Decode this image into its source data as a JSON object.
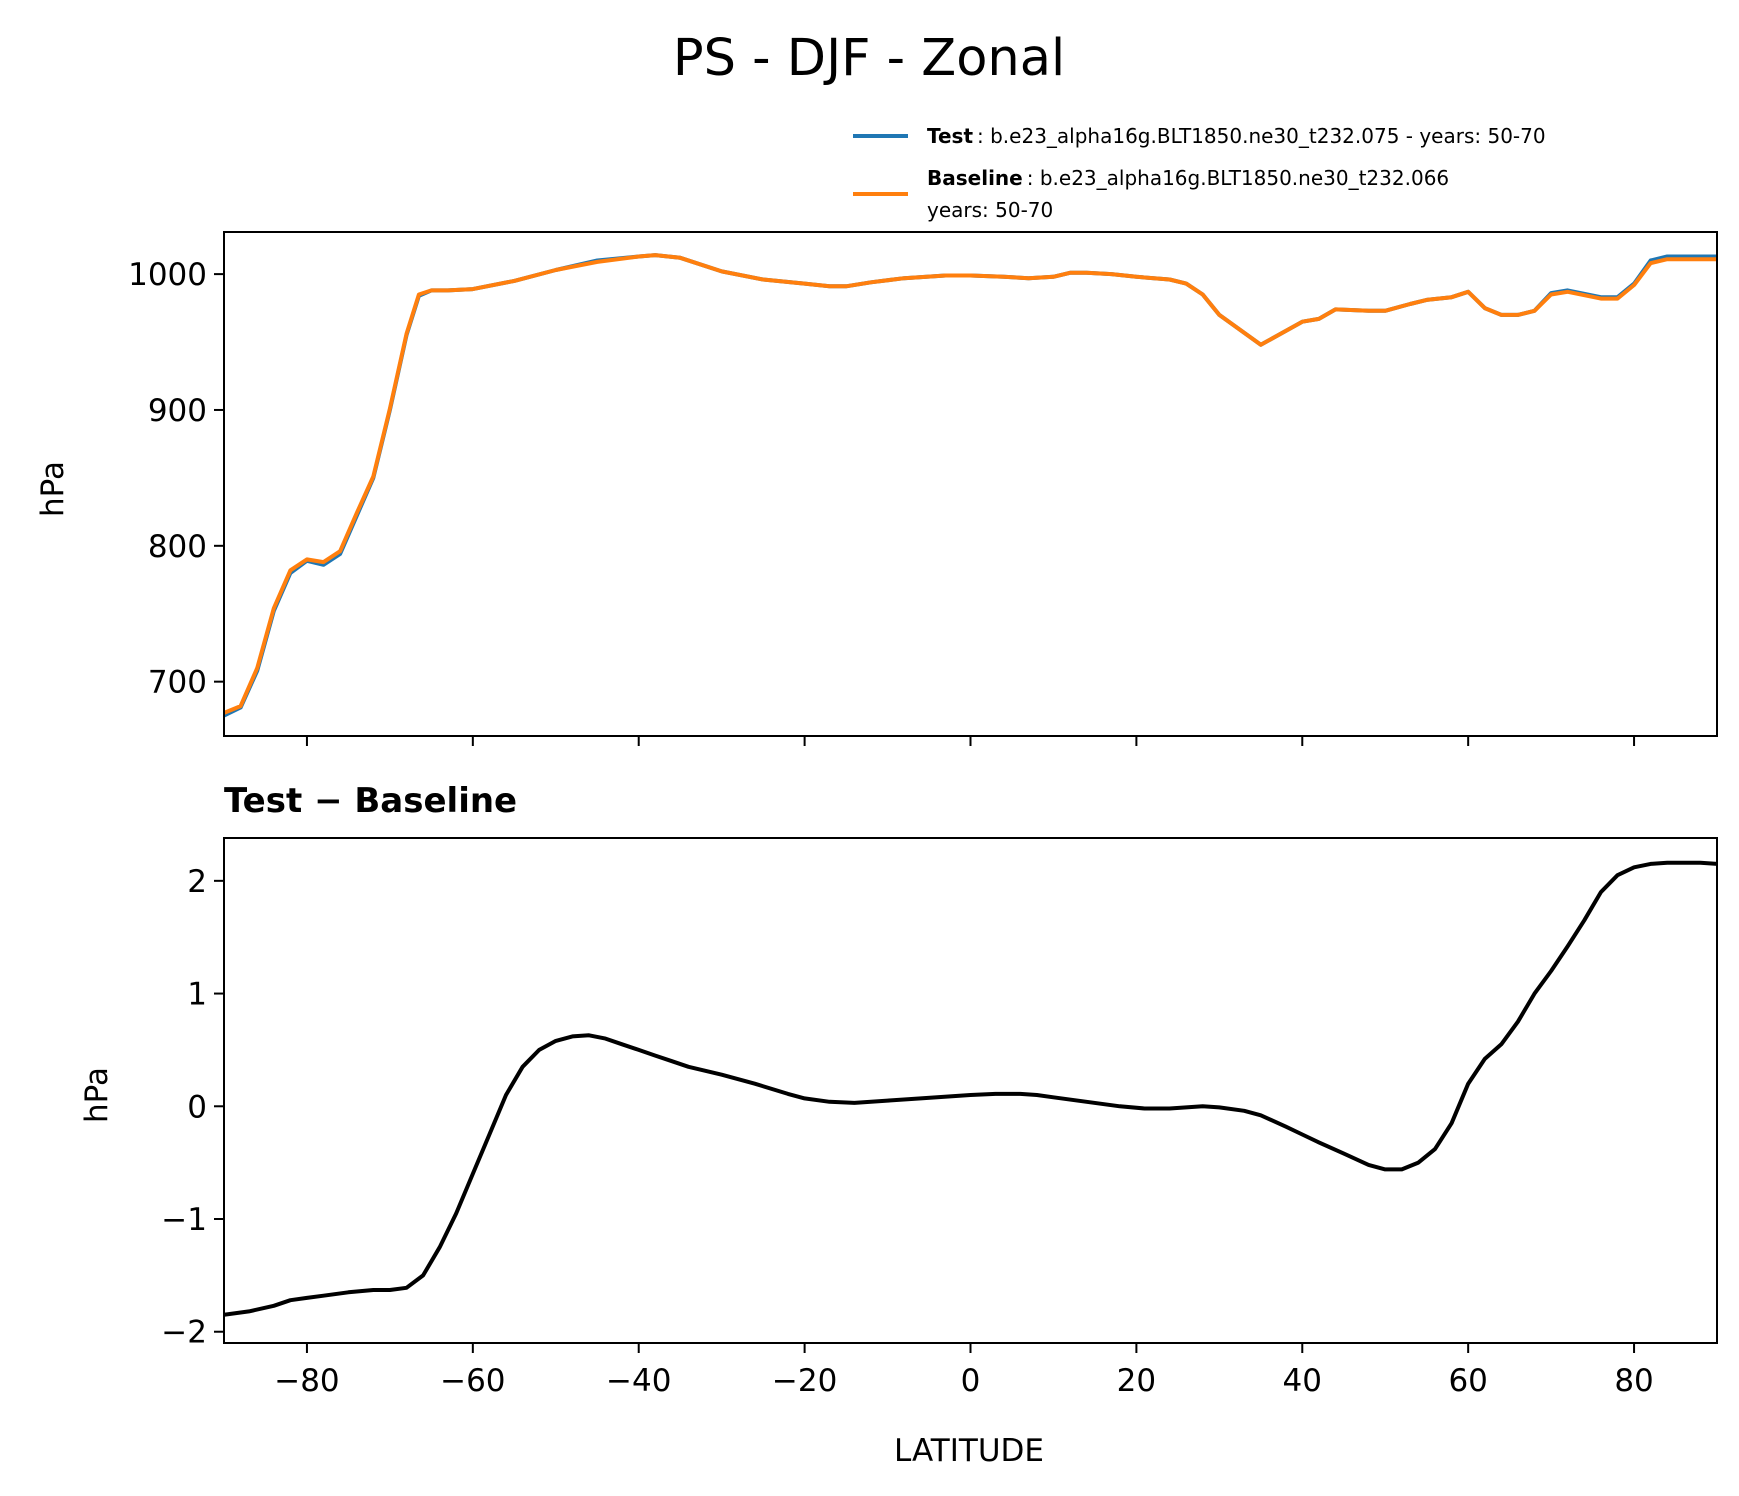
{
  "chart_data": [
    {
      "type": "line",
      "title": "PS - DJF - Zonal",
      "xlabel": "",
      "ylabel": "hPa",
      "xlim": [
        -90,
        90
      ],
      "ylim": [
        660,
        1031
      ],
      "xticks": [
        -80,
        -60,
        -40,
        -20,
        0,
        20,
        40,
        60,
        80
      ],
      "yticks": [
        700,
        800,
        900,
        1000
      ],
      "ytick_labels": [
        "700",
        "800",
        "900",
        "1000"
      ],
      "legend": {
        "placement": "top-right, above axes",
        "entries": [
          {
            "label": "Test",
            "text": ": b.e23_alpha16g.BLT1850.ne30_t232.075 - years: 50-70",
            "text2": ""
          },
          {
            "label": "Baseline",
            "text": ": b.e23_alpha16g.BLT1850.ne30_t232.066",
            "text2": "years: 50-70"
          }
        ]
      },
      "series": [
        {
          "name": "Test",
          "color": "#1f77b4",
          "x": [
            -90,
            -88,
            -86,
            -84,
            -82,
            -80,
            -78,
            -76,
            -74,
            -72,
            -70,
            -68,
            -66.5,
            -65,
            -63,
            -60,
            -55,
            -50,
            -45,
            -40,
            -38,
            -35,
            -30,
            -25,
            -20,
            -17,
            -15,
            -12,
            -8,
            -3,
            0,
            4,
            7,
            10,
            12,
            14,
            17,
            20,
            24,
            26,
            28,
            30,
            35,
            40,
            42,
            44,
            48,
            50,
            53,
            55,
            58,
            60,
            62,
            64,
            66,
            68,
            70,
            72,
            76,
            78,
            80,
            82,
            84,
            86,
            88,
            90
          ],
          "y": [
            675,
            681,
            708,
            752,
            780,
            789,
            786,
            794,
            822,
            850,
            900,
            955,
            984,
            988,
            988,
            989,
            995,
            1003,
            1010,
            1013,
            1014,
            1012,
            1002,
            996,
            993,
            991,
            991,
            994,
            997,
            999,
            999,
            998,
            997,
            998,
            1001,
            1001,
            1000,
            998,
            996,
            993,
            985,
            970,
            948,
            965,
            967,
            974,
            973,
            973,
            978,
            981,
            983,
            987,
            975,
            970,
            970,
            973,
            986,
            988,
            983,
            983,
            993,
            1010,
            1013,
            1013,
            1013,
            1013
          ]
        },
        {
          "name": "Baseline",
          "color": "#ff7f0e",
          "x": [
            -90,
            -88,
            -86,
            -84,
            -82,
            -80,
            -78,
            -76,
            -74,
            -72,
            -70,
            -68,
            -66.5,
            -65,
            -63,
            -60,
            -55,
            -50,
            -45,
            -40,
            -38,
            -35,
            -30,
            -25,
            -20,
            -17,
            -15,
            -12,
            -8,
            -3,
            0,
            4,
            7,
            10,
            12,
            14,
            17,
            20,
            24,
            26,
            28,
            30,
            35,
            40,
            42,
            44,
            48,
            50,
            53,
            55,
            58,
            60,
            62,
            64,
            66,
            68,
            70,
            72,
            76,
            78,
            80,
            82,
            84,
            86,
            88,
            90
          ],
          "y": [
            677,
            682,
            710,
            754,
            782,
            790,
            788,
            796,
            824,
            851,
            901,
            956,
            985,
            988,
            988,
            989,
            995,
            1003,
            1009,
            1013,
            1014,
            1012,
            1002,
            996,
            993,
            991,
            991,
            994,
            997,
            999,
            999,
            998,
            997,
            998,
            1001,
            1001,
            1000,
            998,
            996,
            993,
            985,
            970,
            948,
            965,
            967,
            974,
            973,
            973,
            978,
            981,
            983,
            987,
            975,
            970,
            970,
            973,
            985,
            987,
            982,
            982,
            992,
            1008,
            1011,
            1011,
            1011,
            1011
          ]
        }
      ]
    },
    {
      "type": "line",
      "title": "Test − Baseline",
      "xlabel": "LATITUDE",
      "ylabel": "hPa",
      "xlim": [
        -90,
        90
      ],
      "ylim": [
        -2.1,
        2.38
      ],
      "xticks": [
        -80,
        -60,
        -40,
        -20,
        0,
        20,
        40,
        60,
        80
      ],
      "xtick_labels": [
        "−80",
        "−60",
        "−40",
        "−20",
        "0",
        "20",
        "40",
        "60",
        "80"
      ],
      "yticks": [
        -2,
        -1,
        0,
        1,
        2
      ],
      "ytick_labels": [
        "−2",
        "−1",
        "0",
        "1",
        "2"
      ],
      "series": [
        {
          "name": "Test − Baseline",
          "color": "#000000",
          "x": [
            -90,
            -87,
            -84,
            -82,
            -80,
            -78,
            -75,
            -72,
            -70,
            -68,
            -66,
            -64,
            -62,
            -60,
            -58,
            -56,
            -54,
            -52,
            -50,
            -48,
            -46,
            -44,
            -42,
            -40,
            -38,
            -36,
            -34,
            -30,
            -26,
            -22,
            -20,
            -17,
            -14,
            -10,
            -6,
            -2,
            0,
            3,
            6,
            8,
            10,
            14,
            18,
            21,
            24,
            26,
            28,
            30,
            33,
            35,
            38,
            40,
            42,
            45,
            48,
            50,
            52,
            54,
            56,
            58,
            60,
            62,
            64,
            66,
            68,
            70,
            72,
            74,
            76,
            78,
            80,
            82,
            84,
            86,
            88,
            90
          ],
          "y": [
            -1.85,
            -1.82,
            -1.77,
            -1.72,
            -1.7,
            -1.68,
            -1.65,
            -1.63,
            -1.63,
            -1.61,
            -1.5,
            -1.25,
            -0.95,
            -0.6,
            -0.25,
            0.1,
            0.35,
            0.5,
            0.58,
            0.62,
            0.63,
            0.6,
            0.55,
            0.5,
            0.45,
            0.4,
            0.35,
            0.28,
            0.2,
            0.11,
            0.07,
            0.04,
            0.03,
            0.05,
            0.07,
            0.09,
            0.1,
            0.11,
            0.11,
            0.1,
            0.08,
            0.04,
            0.0,
            -0.02,
            -0.02,
            -0.01,
            0.0,
            -0.01,
            -0.04,
            -0.08,
            -0.18,
            -0.25,
            -0.32,
            -0.42,
            -0.52,
            -0.56,
            -0.56,
            -0.5,
            -0.38,
            -0.15,
            0.2,
            0.42,
            0.55,
            0.75,
            1.0,
            1.2,
            1.42,
            1.65,
            1.9,
            2.05,
            2.12,
            2.15,
            2.16,
            2.16,
            2.16,
            2.15
          ]
        }
      ]
    }
  ]
}
